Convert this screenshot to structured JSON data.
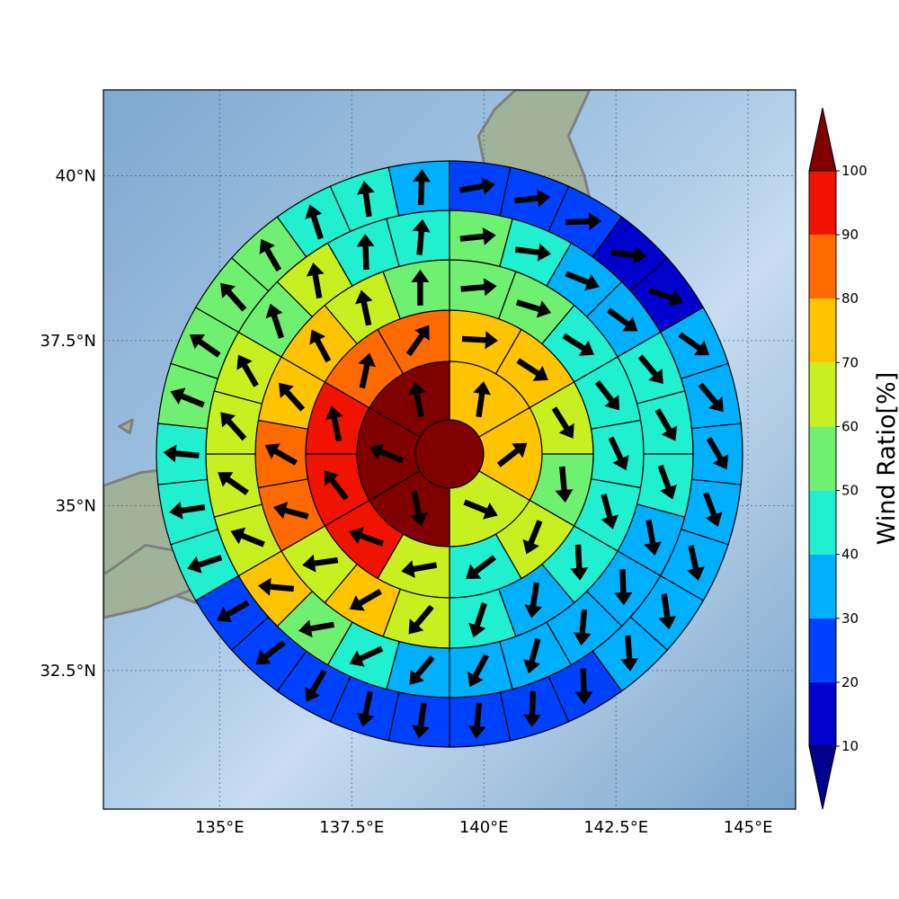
{
  "chart_data": {
    "type": "polar-sector-map",
    "title": "",
    "map": {
      "lon_range": [
        132.8,
        145.9
      ],
      "lat_range": [
        30.4,
        41.3
      ],
      "lon_ticks": [
        135,
        137.5,
        140,
        142.5,
        145
      ],
      "lon_tick_labels": [
        "135°E",
        "137.5°E",
        "140°E",
        "142.5°E",
        "145°E"
      ],
      "lat_ticks": [
        32.5,
        35,
        37.5,
        40
      ],
      "lat_tick_labels": [
        "32.5°N",
        "35°N",
        "37.5°N",
        "40°N"
      ],
      "grid": true,
      "ocean_color": "#8ab4d6",
      "land_color": "#9fb39a",
      "coast_color": "#808080"
    },
    "rings": [
      {
        "sectors": 1,
        "values": [
          100
        ],
        "arrow_deg": []
      },
      {
        "sectors": 6,
        "values": [
          70,
          70,
          60,
          100,
          100,
          100
        ],
        "arrow_deg": [
          8,
          52,
          112,
          168,
          292,
          350
        ]
      },
      {
        "sectors": 12,
        "values": [
          70,
          70,
          60,
          50,
          60,
          40,
          60,
          90,
          90,
          90,
          80,
          80
        ],
        "arrow_deg": [
          93,
          123,
          148,
          175,
          202,
          233,
          260,
          290,
          322,
          348,
          12,
          35
        ]
      },
      {
        "sectors": 18,
        "values": [
          50,
          50,
          40,
          40,
          40,
          40,
          40,
          30,
          40,
          60,
          70,
          60,
          80,
          80,
          70,
          70,
          60,
          50
        ],
        "arrow_deg": [
          85,
          107,
          122,
          142,
          155,
          165,
          177,
          188,
          198,
          220,
          240,
          262,
          285,
          300,
          318,
          332,
          348,
          0
        ]
      },
      {
        "sectors": 24,
        "values": [
          50,
          40,
          30,
          30,
          40,
          40,
          40,
          30,
          30,
          30,
          30,
          30,
          30,
          40,
          50,
          70,
          60,
          60,
          60,
          60,
          50,
          60,
          40,
          40
        ],
        "arrow_deg": [
          84,
          97,
          112,
          126,
          140,
          150,
          160,
          170,
          178,
          185,
          195,
          208,
          220,
          245,
          260,
          275,
          292,
          305,
          318,
          330,
          342,
          350,
          358,
          5
        ]
      },
      {
        "sectors": 30,
        "values": [
          20,
          20,
          20,
          10,
          10,
          30,
          30,
          30,
          30,
          30,
          30,
          30,
          20,
          20,
          20,
          20,
          20,
          20,
          20,
          20,
          40,
          40,
          40,
          50,
          50,
          50,
          50,
          40,
          40,
          30
        ],
        "arrow_deg": [
          80,
          84,
          88,
          96,
          110,
          125,
          140,
          150,
          160,
          168,
          172,
          176,
          178,
          182,
          185,
          188,
          192,
          210,
          232,
          240,
          252,
          262,
          275,
          292,
          305,
          318,
          330,
          342,
          352,
          2
        ]
      }
    ],
    "colorbar": {
      "label": "Wind Ratio[%]",
      "ticks": [
        10,
        20,
        30,
        40,
        50,
        60,
        70,
        80,
        90,
        100
      ],
      "colors": [
        "#0000cd",
        "#0040ff",
        "#00b0ff",
        "#20f0d0",
        "#70f070",
        "#c8f020",
        "#ffc400",
        "#ff6a00",
        "#f01400"
      ],
      "under_color": "#00008b",
      "over_color": "#800000",
      "extend": "both"
    }
  }
}
